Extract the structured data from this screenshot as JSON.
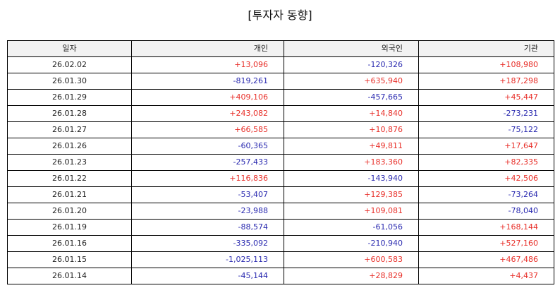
{
  "title": "[투자자 동향]",
  "colors": {
    "positive": "#e8302a",
    "negative": "#2b2bb0",
    "header_bg": "#f2f2f2"
  },
  "table": {
    "headers": [
      "일자",
      "개인",
      "외국인",
      "기관"
    ],
    "rows": [
      [
        "26.02.02",
        "+13,096",
        "-120,326",
        "+108,980"
      ],
      [
        "26.01.30",
        "-819,261",
        "+635,940",
        "+187,298"
      ],
      [
        "26.01.29",
        "+409,106",
        "-457,665",
        "+45,447"
      ],
      [
        "26.01.28",
        "+243,082",
        "+14,840",
        "-273,231"
      ],
      [
        "26.01.27",
        "+66,585",
        "+10,876",
        "-75,122"
      ],
      [
        "26.01.26",
        "-60,365",
        "+49,811",
        "+17,647"
      ],
      [
        "26.01.23",
        "-257,433",
        "+183,360",
        "+82,335"
      ],
      [
        "26.01.22",
        "+116,836",
        "-143,940",
        "+42,506"
      ],
      [
        "26.01.21",
        "-53,407",
        "+129,385",
        "-73,264"
      ],
      [
        "26.01.20",
        "-23,988",
        "+109,081",
        "-78,040"
      ],
      [
        "26.01.19",
        "-88,574",
        "-61,056",
        "+168,144"
      ],
      [
        "26.01.16",
        "-335,092",
        "-210,940",
        "+527,160"
      ],
      [
        "26.01.15",
        "-1,025,113",
        "+600,583",
        "+467,486"
      ],
      [
        "26.01.14",
        "-45,144",
        "+28,829",
        "+4,437"
      ]
    ]
  }
}
